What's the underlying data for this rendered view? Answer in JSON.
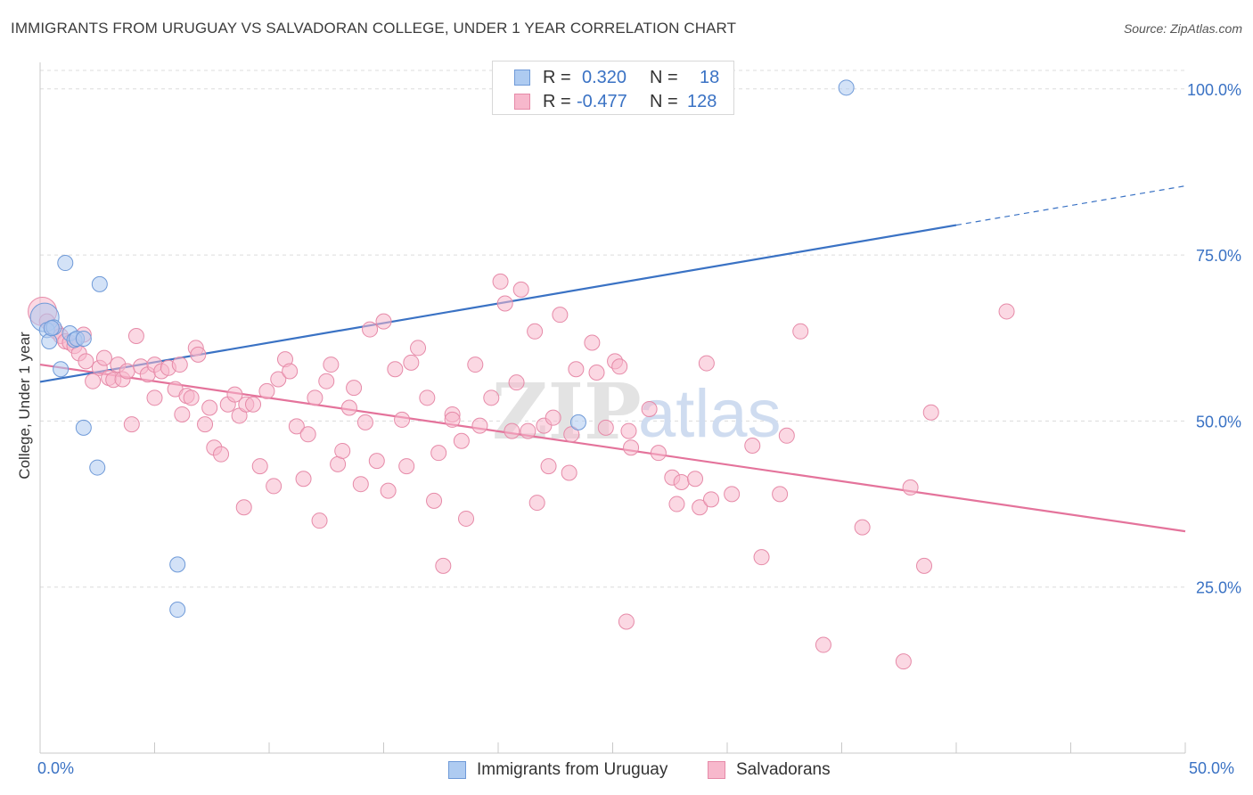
{
  "title": "IMMIGRANTS FROM URUGUAY VS SALVADORAN COLLEGE, UNDER 1 YEAR CORRELATION CHART",
  "source": "Source: ZipAtlas.com",
  "watermark": {
    "zip": "ZIP",
    "atlas": "atlas"
  },
  "legend": {
    "r_label": "R =",
    "n_label": "N =",
    "series": [
      {
        "name": "Immigrants from Uruguay",
        "r": "0.320",
        "n": "18",
        "fill": "#aecbf1",
        "stroke": "#6f9ad8"
      },
      {
        "name": "Salvadorans",
        "r": "-0.477",
        "n": "128",
        "fill": "#f7b8cc",
        "stroke": "#e68aa8"
      }
    ]
  },
  "colors": {
    "blue_line": "#3a72c4",
    "pink_line": "#e4739b",
    "tick_text": "#3a72c4",
    "grid": "#dcdcdc"
  },
  "chart_data": {
    "type": "scatter",
    "title": "IMMIGRANTS FROM URUGUAY VS SALVADORAN COLLEGE, UNDER 1 YEAR CORRELATION CHART",
    "xlabel": "",
    "ylabel": "College, Under 1 year",
    "xlim": [
      0,
      50
    ],
    "ylim": [
      0,
      104
    ],
    "x_tick_labels": [
      "0.0%",
      "50.0%"
    ],
    "y_ticks": [
      25,
      50,
      75,
      100
    ],
    "y_tick_labels": [
      "25.0%",
      "50.0%",
      "75.0%",
      "100.0%"
    ],
    "series": [
      {
        "name": "Immigrants from Uruguay",
        "r": 0.32,
        "n": 18,
        "points": [
          [
            0.2,
            65.6
          ],
          [
            0.3,
            63.7
          ],
          [
            0.4,
            62.0
          ],
          [
            0.6,
            64.1
          ],
          [
            0.9,
            57.8
          ],
          [
            1.1,
            73.8
          ],
          [
            1.3,
            63.2
          ],
          [
            1.5,
            62.2
          ],
          [
            1.6,
            62.4
          ],
          [
            1.9,
            62.4
          ],
          [
            1.9,
            49.0
          ],
          [
            2.5,
            43.0
          ],
          [
            2.6,
            70.6
          ],
          [
            6.0,
            28.4
          ],
          [
            6.0,
            21.6
          ],
          [
            23.5,
            49.8
          ],
          [
            35.2,
            100.2
          ],
          [
            0.5,
            64.0
          ]
        ],
        "trend": {
          "x": [
            0,
            40
          ],
          "y": [
            55.9,
            79.5
          ]
        },
        "trend_dashed": {
          "x": [
            40,
            50
          ],
          "y": [
            79.5,
            85.4
          ]
        }
      },
      {
        "name": "Salvadorans",
        "r": -0.477,
        "n": 128,
        "points": [
          [
            0.1,
            66.5
          ],
          [
            0.3,
            65.0
          ],
          [
            0.5,
            64.0
          ],
          [
            0.7,
            63.5
          ],
          [
            0.9,
            62.8
          ],
          [
            1.1,
            62.0
          ],
          [
            1.3,
            61.8
          ],
          [
            1.5,
            61.3
          ],
          [
            1.7,
            60.2
          ],
          [
            1.9,
            63.0
          ],
          [
            2.0,
            59.0
          ],
          [
            2.3,
            56.0
          ],
          [
            2.6,
            58.0
          ],
          [
            2.8,
            59.5
          ],
          [
            3.0,
            56.5
          ],
          [
            3.2,
            56.2
          ],
          [
            3.4,
            58.5
          ],
          [
            3.6,
            56.3
          ],
          [
            3.8,
            57.5
          ],
          [
            4.0,
            49.5
          ],
          [
            4.2,
            62.8
          ],
          [
            4.4,
            58.2
          ],
          [
            4.7,
            57.0
          ],
          [
            5.0,
            58.5
          ],
          [
            5.0,
            53.5
          ],
          [
            5.3,
            57.5
          ],
          [
            5.6,
            58.0
          ],
          [
            5.9,
            54.8
          ],
          [
            6.1,
            58.5
          ],
          [
            6.2,
            51.0
          ],
          [
            6.4,
            53.8
          ],
          [
            6.6,
            53.5
          ],
          [
            6.8,
            61.0
          ],
          [
            6.9,
            60.0
          ],
          [
            7.2,
            49.5
          ],
          [
            7.4,
            52.0
          ],
          [
            7.6,
            46.0
          ],
          [
            7.9,
            45.0
          ],
          [
            8.2,
            52.5
          ],
          [
            8.5,
            54.0
          ],
          [
            8.7,
            50.8
          ],
          [
            8.9,
            37.0
          ],
          [
            9.0,
            52.5
          ],
          [
            9.3,
            52.5
          ],
          [
            9.6,
            43.2
          ],
          [
            9.9,
            54.5
          ],
          [
            10.2,
            40.2
          ],
          [
            10.4,
            56.3
          ],
          [
            10.7,
            59.3
          ],
          [
            10.9,
            57.5
          ],
          [
            11.2,
            49.2
          ],
          [
            11.5,
            41.3
          ],
          [
            11.7,
            48.0
          ],
          [
            12.0,
            53.5
          ],
          [
            12.2,
            35.0
          ],
          [
            12.5,
            56.0
          ],
          [
            12.7,
            58.5
          ],
          [
            13.0,
            43.5
          ],
          [
            13.2,
            45.5
          ],
          [
            13.5,
            52.0
          ],
          [
            13.7,
            55.0
          ],
          [
            14.0,
            40.5
          ],
          [
            14.2,
            49.8
          ],
          [
            14.4,
            63.8
          ],
          [
            14.7,
            44.0
          ],
          [
            15.0,
            65.0
          ],
          [
            15.2,
            39.5
          ],
          [
            15.5,
            57.8
          ],
          [
            15.8,
            50.2
          ],
          [
            16.0,
            43.2
          ],
          [
            16.2,
            58.8
          ],
          [
            16.5,
            61.0
          ],
          [
            16.9,
            53.5
          ],
          [
            17.2,
            38.0
          ],
          [
            17.4,
            45.2
          ],
          [
            17.6,
            28.2
          ],
          [
            18.0,
            51.0
          ],
          [
            18.0,
            50.2
          ],
          [
            18.4,
            47.0
          ],
          [
            18.6,
            35.3
          ],
          [
            19.0,
            58.5
          ],
          [
            19.2,
            49.3
          ],
          [
            19.7,
            53.5
          ],
          [
            20.1,
            71.0
          ],
          [
            20.3,
            67.7
          ],
          [
            20.6,
            48.5
          ],
          [
            20.8,
            55.8
          ],
          [
            21.0,
            69.8
          ],
          [
            21.3,
            48.5
          ],
          [
            21.6,
            63.5
          ],
          [
            21.7,
            37.7
          ],
          [
            22.0,
            49.3
          ],
          [
            22.2,
            43.2
          ],
          [
            22.4,
            50.5
          ],
          [
            22.7,
            66.0
          ],
          [
            23.1,
            42.2
          ],
          [
            23.2,
            48.0
          ],
          [
            23.4,
            57.8
          ],
          [
            24.1,
            61.8
          ],
          [
            24.3,
            57.3
          ],
          [
            24.7,
            49.0
          ],
          [
            25.1,
            59.0
          ],
          [
            25.3,
            58.2
          ],
          [
            25.7,
            48.5
          ],
          [
            25.8,
            46.0
          ],
          [
            26.6,
            51.8
          ],
          [
            27.0,
            45.2
          ],
          [
            27.6,
            41.5
          ],
          [
            27.8,
            37.5
          ],
          [
            28.0,
            40.8
          ],
          [
            28.6,
            41.3
          ],
          [
            28.8,
            37.0
          ],
          [
            29.1,
            58.7
          ],
          [
            29.3,
            38.2
          ],
          [
            30.2,
            39.0
          ],
          [
            31.1,
            46.3
          ],
          [
            31.5,
            29.5
          ],
          [
            32.3,
            39.0
          ],
          [
            32.6,
            47.8
          ],
          [
            33.2,
            63.5
          ],
          [
            34.2,
            16.3
          ],
          [
            35.9,
            34.0
          ],
          [
            37.7,
            13.8
          ],
          [
            38.0,
            40.0
          ],
          [
            38.6,
            28.2
          ],
          [
            38.9,
            51.3
          ],
          [
            42.2,
            66.5
          ],
          [
            25.6,
            19.8
          ]
        ],
        "trend": {
          "x": [
            0,
            50
          ],
          "y": [
            58.5,
            33.4
          ]
        }
      }
    ]
  }
}
